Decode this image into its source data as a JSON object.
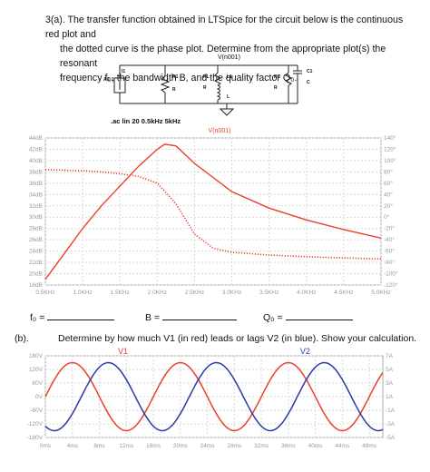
{
  "question_a": {
    "line1": "3(a). The transfer function obtained in LTSpice for the circuit below is the continuous red plot and",
    "line2": "the dotted curve is the phase plot. Determine from the appropriate plot(s) the resonant",
    "line3": "frequency f₀, the bandwidth B, and the quality factor Q₀."
  },
  "circuit": {
    "node_label": "V(n001)",
    "source_name": "I1",
    "source_value": "AC 1",
    "r1_name": "R1",
    "r1_value": "R",
    "rl_name": "RL",
    "rl_value": "R",
    "l1_name": "L1",
    "l1_value": "L",
    "rc_name": "RC",
    "rc_value": "R",
    "c1_name": "C1",
    "c1_value": "C",
    "directive": ".ac lin 20 0.5kHz 5kHz"
  },
  "answers": {
    "f0_label": "f₀ =",
    "b_label": "B =",
    "q0_label": "Q₀ ="
  },
  "question_b": {
    "label": "(b).",
    "text": "Determine by how much V1 (in red) leads or lags V2 (in blue). Show your calculation."
  },
  "colors": {
    "red": "#e8412c",
    "blue": "#2a3aa6",
    "grid": "#d9d9d9",
    "tick": "#a8a8a8"
  },
  "chart_data": [
    {
      "type": "line",
      "title": "V(n001)",
      "x_unit": "kHz",
      "x_ticks": [
        "0.5KHz",
        "1.0KHz",
        "1.5KHz",
        "2.0KHz",
        "2.5KHz",
        "3.0KHz",
        "3.5KHz",
        "4.0KHz",
        "4.5KHz",
        "5.0KHz"
      ],
      "y_left_ticks": [
        "44dB",
        "42dB",
        "40dB",
        "38dB",
        "36dB",
        "34dB",
        "32dB",
        "30dB",
        "28dB",
        "26dB",
        "24dB",
        "22dB",
        "20dB",
        "18dB"
      ],
      "y_right_ticks": [
        "140°",
        "120°",
        "100°",
        "80°",
        "60°",
        "40°",
        "20°",
        "0°",
        "-20°",
        "-40°",
        "-60°",
        "-80°",
        "-100°",
        "-120°"
      ],
      "ylim_left": [
        18,
        44
      ],
      "ylim_right": [
        -120,
        140
      ],
      "xlim": [
        0.5,
        5.0
      ],
      "grid": true,
      "series": [
        {
          "name": "V(n001)",
          "style": "solid",
          "axis": "left",
          "x": [
            0.5,
            0.75,
            1.0,
            1.25,
            1.5,
            1.75,
            2.0,
            2.1,
            2.25,
            2.5,
            3.0,
            3.5,
            4.0,
            4.5,
            5.0
          ],
          "y": [
            19,
            23.5,
            28,
            32,
            35.5,
            39,
            42,
            42.9,
            42.6,
            39.5,
            34.5,
            31.6,
            29.5,
            27.8,
            26.3
          ]
        },
        {
          "style": "dotted",
          "axis": "right",
          "x": [
            0.5,
            1.0,
            1.25,
            1.5,
            1.75,
            2.0,
            2.25,
            2.5,
            2.75,
            3.0,
            3.5,
            4.0,
            4.5,
            5.0
          ],
          "y": [
            84,
            82,
            80,
            77,
            72,
            60,
            24,
            -30,
            -55,
            -62,
            -67,
            -70,
            -72,
            -74
          ]
        }
      ]
    },
    {
      "type": "line",
      "x_ticks": [
        "0ms",
        "4ms",
        "8ms",
        "12ms",
        "16ms",
        "20ms",
        "24ms",
        "28ms",
        "32ms",
        "36ms",
        "40ms",
        "44ms",
        "48ms"
      ],
      "y_left_ticks": [
        "180V",
        "120V",
        "60V",
        "0V",
        "-60V",
        "-120V",
        "-180V"
      ],
      "y_right_ticks": [
        "7A",
        "5A",
        "3A",
        "1A",
        "-1A",
        "-3A",
        "-5A"
      ],
      "ylim": [
        -180,
        180
      ],
      "xlim": [
        0,
        50
      ],
      "grid": true,
      "series": [
        {
          "name": "V1",
          "color": "red",
          "amplitude": 150,
          "period_ms": 16,
          "phase_deg": 0
        },
        {
          "name": "V2",
          "color": "blue",
          "amplitude": 150,
          "period_ms": 16,
          "phase_deg": -120
        }
      ]
    }
  ]
}
